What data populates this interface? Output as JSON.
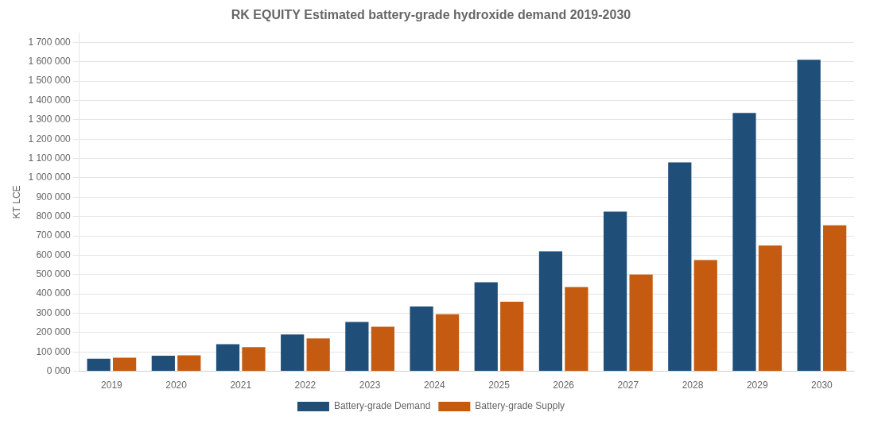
{
  "chart_data": {
    "type": "bar",
    "title": "RK EQUITY Estimated battery-grade hydroxide demand 2019-2030",
    "categories": [
      "2019",
      "2020",
      "2021",
      "2022",
      "2023",
      "2024",
      "2025",
      "2026",
      "2027",
      "2028",
      "2029",
      "2030"
    ],
    "series": [
      {
        "name": "Battery-grade Demand",
        "color": "#1F4E79",
        "values": [
          65000,
          80000,
          140000,
          190000,
          255000,
          335000,
          460000,
          620000,
          825000,
          1080000,
          1335000,
          1610000
        ]
      },
      {
        "name": "Battery-grade Supply",
        "color": "#C55A11",
        "values": [
          70000,
          82000,
          125000,
          170000,
          230000,
          295000,
          360000,
          435000,
          500000,
          575000,
          650000,
          755000
        ]
      }
    ],
    "ylabel": "KT LCE",
    "ylim": [
      0,
      1750000
    ],
    "yticks": [
      {
        "value": 0,
        "label": "0 000"
      },
      {
        "value": 100000,
        "label": "100 000"
      },
      {
        "value": 200000,
        "label": "200 000"
      },
      {
        "value": 300000,
        "label": "300 000"
      },
      {
        "value": 400000,
        "label": "400 000"
      },
      {
        "value": 500000,
        "label": "500 000"
      },
      {
        "value": 600000,
        "label": "600 000"
      },
      {
        "value": 700000,
        "label": "700 000"
      },
      {
        "value": 800000,
        "label": "800 000"
      },
      {
        "value": 900000,
        "label": "900 000"
      },
      {
        "value": 1000000,
        "label": "1 000 000"
      },
      {
        "value": 1100000,
        "label": "1 100 000"
      },
      {
        "value": 1200000,
        "label": "1 200 000"
      },
      {
        "value": 1300000,
        "label": "1 300 000"
      },
      {
        "value": 1400000,
        "label": "1 400 000"
      },
      {
        "value": 1500000,
        "label": "1 500 000"
      },
      {
        "value": 1600000,
        "label": "1 600 000"
      },
      {
        "value": 1700000,
        "label": "1 700 000"
      }
    ],
    "grid": true,
    "legend": "bottom"
  }
}
